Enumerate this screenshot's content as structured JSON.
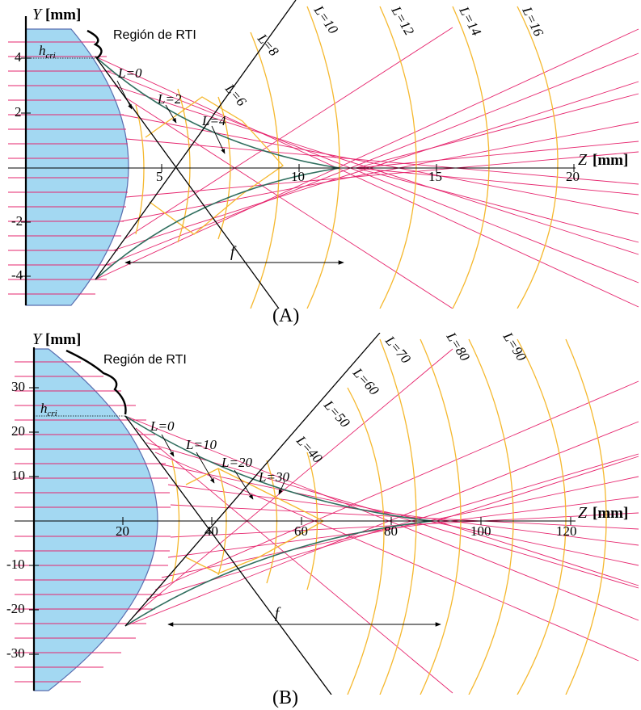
{
  "colors": {
    "lens_fill": "#a3d8f2",
    "lens_stroke": "#5a6fb0",
    "ray": "#e6266e",
    "wavefront": "#f5b82e",
    "caustic": "#2f6e5e",
    "line": "#000000"
  },
  "axis_name_y": "Y",
  "axis_name_z": "Z",
  "axis_unit": "[mm]",
  "region_label": "Región de RTI",
  "h_main": "h",
  "h_sub": "cri",
  "focal_label": "f",
  "L_sym": "L",
  "panels": [
    {
      "id": "A",
      "caption": "(A)",
      "y_ticks": [
        "4",
        "2",
        "-2",
        "-4"
      ],
      "z_ticks": [
        "5",
        "10",
        "15",
        "20"
      ],
      "L_inner": [
        "=0",
        "=2",
        "=4"
      ],
      "L_outer": [
        "=6",
        "=8",
        "=10",
        "=12",
        "=14",
        "=16"
      ]
    },
    {
      "id": "B",
      "caption": "(B)",
      "y_ticks": [
        "30",
        "20",
        "10",
        "-10",
        "-20",
        "-30"
      ],
      "z_ticks": [
        "20",
        "40",
        "60",
        "80",
        "100",
        "120"
      ],
      "L_inner": [
        "=0",
        "=10",
        "=20",
        "=30"
      ],
      "L_outer": [
        "=40",
        "=50",
        "=60",
        "=70",
        "=80",
        "=90"
      ]
    }
  ]
}
